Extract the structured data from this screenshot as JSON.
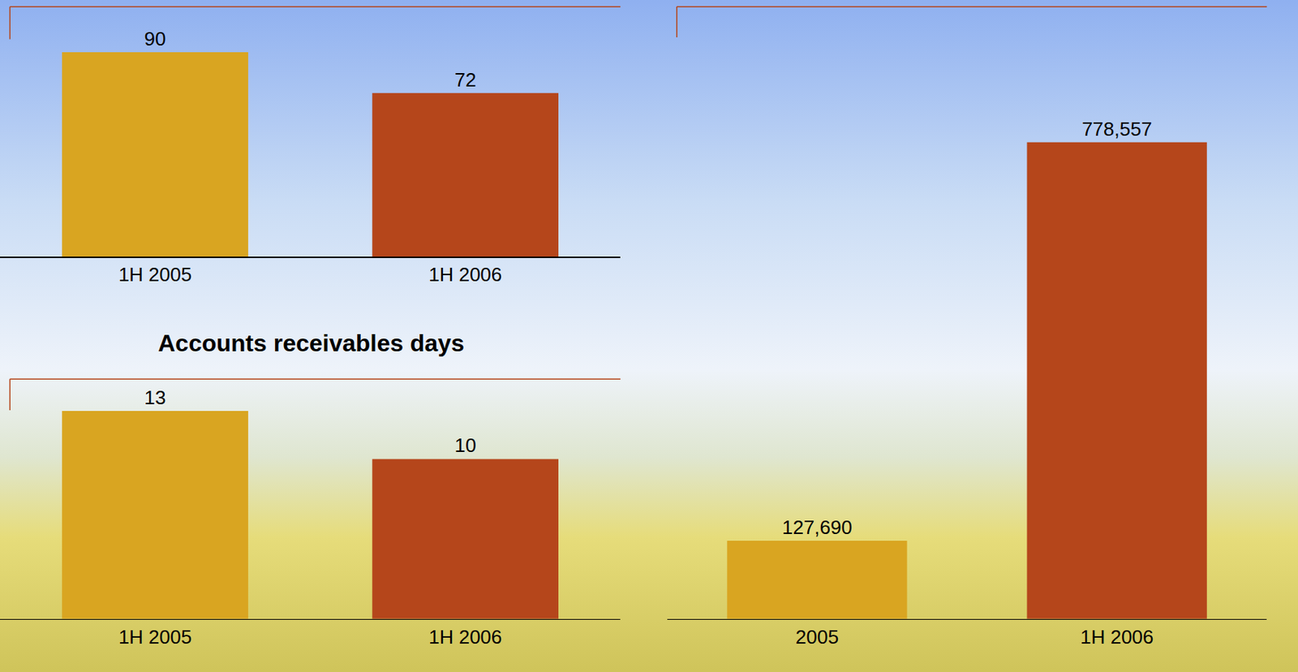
{
  "chart_data": [
    {
      "type": "bar",
      "categories": [
        "1H 2005",
        "1H 2006"
      ],
      "values": [
        90,
        72
      ],
      "colors": [
        "#d9a521",
        "#b5461b"
      ],
      "ylim": [
        0,
        110
      ],
      "data_labels": true,
      "tick_labels": "x"
    },
    {
      "type": "bar",
      "title": "Accounts receivables days",
      "categories": [
        "1H 2005",
        "1H 2006"
      ],
      "values": [
        13,
        10
      ],
      "colors": [
        "#d9a521",
        "#b5461b"
      ],
      "ylim": [
        0,
        15
      ],
      "data_labels": true,
      "tick_labels": "x"
    },
    {
      "type": "bar",
      "categories": [
        "2005",
        "1H 2006"
      ],
      "values": [
        127690,
        778557
      ],
      "value_labels": [
        "127,690",
        "778,557"
      ],
      "colors": [
        "#d9a521",
        "#b5461b"
      ],
      "ylim": [
        0,
        1000000
      ],
      "data_labels": true,
      "tick_labels": "x"
    }
  ]
}
